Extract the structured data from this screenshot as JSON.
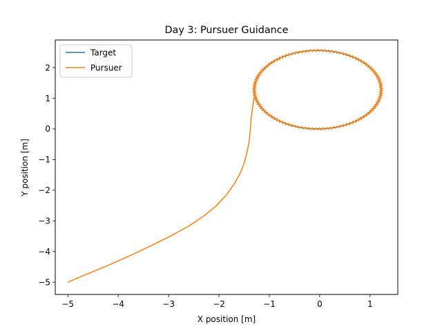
{
  "chart_data": {
    "type": "line",
    "title": "Day 3: Pursuer Guidance",
    "xlabel": "X position [m]",
    "ylabel": "Y position [m]",
    "xlim": [
      -5.25,
      1.55
    ],
    "ylim": [
      -5.4,
      2.9
    ],
    "xticks": [
      -5,
      -4,
      -3,
      -2,
      -1,
      0,
      1
    ],
    "yticks": [
      -5,
      -4,
      -3,
      -2,
      -1,
      0,
      1,
      2
    ],
    "xtick_labels": [
      "−5",
      "−4",
      "−3",
      "−2",
      "−1",
      "0",
      "1"
    ],
    "ytick_labels": [
      "−5",
      "−4",
      "−3",
      "−2",
      "−1",
      "0",
      "1",
      "2"
    ],
    "grid": false,
    "legend_position": "upper-left",
    "target_ellipse": {
      "cx": -0.04,
      "cy": 1.28,
      "rx": 1.26,
      "ry": 1.28
    },
    "series": [
      {
        "name": "Target",
        "color": "#1f77b4",
        "path": "ellipse"
      },
      {
        "name": "Pursuer",
        "color": "#ff7f0e",
        "approach": [
          [
            -5.0,
            -5.0
          ],
          [
            -4.6,
            -4.72
          ],
          [
            -4.2,
            -4.45
          ],
          [
            -3.8,
            -4.16
          ],
          [
            -3.4,
            -3.85
          ],
          [
            -3.0,
            -3.53
          ],
          [
            -2.6,
            -3.17
          ],
          [
            -2.3,
            -2.84
          ],
          [
            -2.05,
            -2.5
          ],
          [
            -1.85,
            -2.15
          ],
          [
            -1.7,
            -1.8
          ],
          [
            -1.58,
            -1.45
          ],
          [
            -1.5,
            -1.12
          ],
          [
            -1.45,
            -0.8
          ],
          [
            -1.41,
            -0.5
          ],
          [
            -1.39,
            -0.25
          ],
          [
            -1.38,
            -0.05
          ],
          [
            -1.37,
            0.15
          ],
          [
            -1.36,
            0.35
          ],
          [
            -1.34,
            0.6
          ],
          [
            -1.32,
            0.85
          ],
          [
            -1.3,
            1.05
          ]
        ],
        "orbit": "ellipse"
      }
    ]
  }
}
